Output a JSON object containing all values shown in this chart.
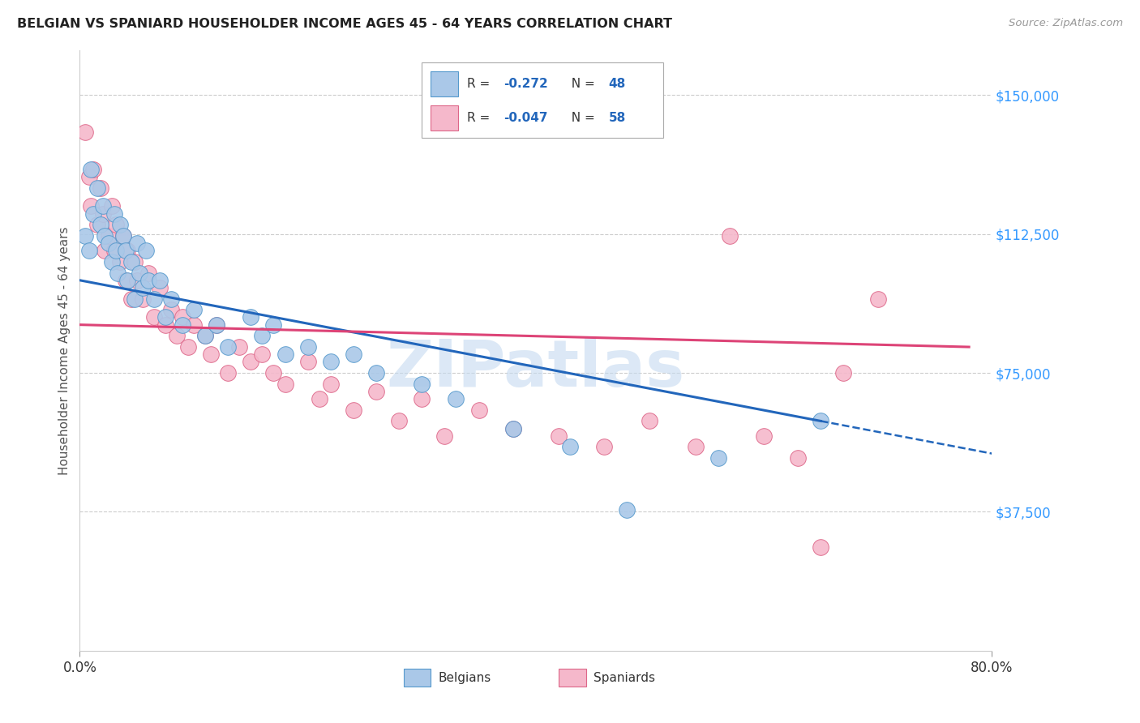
{
  "title": "BELGIAN VS SPANIARD HOUSEHOLDER INCOME AGES 45 - 64 YEARS CORRELATION CHART",
  "source": "Source: ZipAtlas.com",
  "ylabel": "Householder Income Ages 45 - 64 years",
  "xlim": [
    0.0,
    0.8
  ],
  "ylim": [
    0,
    162000
  ],
  "ytick_values": [
    37500,
    75000,
    112500,
    150000
  ],
  "ytick_labels": [
    "$37,500",
    "$75,000",
    "$112,500",
    "$150,000"
  ],
  "xtick_values": [
    0.0,
    0.8
  ],
  "xtick_labels": [
    "0.0%",
    "80.0%"
  ],
  "background_color": "#ffffff",
  "grid_color": "#cccccc",
  "belgian_fill": "#aac8e8",
  "belgian_edge": "#5599cc",
  "spaniard_fill": "#f5b8cb",
  "spaniard_edge": "#dd6688",
  "belgian_trend_color": "#2266bb",
  "spaniard_trend_color": "#dd4477",
  "watermark": "ZIPatlas",
  "watermark_color": "#c5daf0",
  "legend_R_color": "#2266bb",
  "legend_box_edge": "#aaaaaa",
  "ytick_color": "#3399ff",
  "belgian_scatter_x": [
    0.005,
    0.008,
    0.01,
    0.012,
    0.015,
    0.018,
    0.02,
    0.022,
    0.025,
    0.028,
    0.03,
    0.032,
    0.033,
    0.035,
    0.038,
    0.04,
    0.042,
    0.045,
    0.048,
    0.05,
    0.052,
    0.055,
    0.058,
    0.06,
    0.065,
    0.07,
    0.075,
    0.08,
    0.09,
    0.1,
    0.11,
    0.12,
    0.13,
    0.15,
    0.16,
    0.17,
    0.18,
    0.2,
    0.22,
    0.24,
    0.26,
    0.3,
    0.33,
    0.38,
    0.43,
    0.48,
    0.56,
    0.65
  ],
  "belgian_scatter_y": [
    112000,
    108000,
    130000,
    118000,
    125000,
    115000,
    120000,
    112000,
    110000,
    105000,
    118000,
    108000,
    102000,
    115000,
    112000,
    108000,
    100000,
    105000,
    95000,
    110000,
    102000,
    98000,
    108000,
    100000,
    95000,
    100000,
    90000,
    95000,
    88000,
    92000,
    85000,
    88000,
    82000,
    90000,
    85000,
    88000,
    80000,
    82000,
    78000,
    80000,
    75000,
    72000,
    68000,
    60000,
    55000,
    38000,
    52000,
    62000
  ],
  "spaniard_scatter_x": [
    0.005,
    0.008,
    0.01,
    0.012,
    0.015,
    0.018,
    0.02,
    0.022,
    0.025,
    0.028,
    0.03,
    0.032,
    0.035,
    0.038,
    0.04,
    0.042,
    0.045,
    0.048,
    0.05,
    0.055,
    0.06,
    0.065,
    0.07,
    0.075,
    0.08,
    0.085,
    0.09,
    0.095,
    0.1,
    0.11,
    0.115,
    0.12,
    0.13,
    0.14,
    0.15,
    0.16,
    0.17,
    0.18,
    0.2,
    0.21,
    0.22,
    0.24,
    0.26,
    0.28,
    0.3,
    0.32,
    0.35,
    0.38,
    0.42,
    0.46,
    0.5,
    0.54,
    0.57,
    0.6,
    0.63,
    0.65,
    0.67,
    0.7
  ],
  "spaniard_scatter_y": [
    140000,
    128000,
    120000,
    130000,
    115000,
    125000,
    118000,
    108000,
    112000,
    120000,
    108000,
    115000,
    105000,
    112000,
    100000,
    108000,
    95000,
    105000,
    100000,
    95000,
    102000,
    90000,
    98000,
    88000,
    92000,
    85000,
    90000,
    82000,
    88000,
    85000,
    80000,
    88000,
    75000,
    82000,
    78000,
    80000,
    75000,
    72000,
    78000,
    68000,
    72000,
    65000,
    70000,
    62000,
    68000,
    58000,
    65000,
    60000,
    58000,
    55000,
    62000,
    55000,
    112000,
    58000,
    52000,
    28000,
    75000,
    95000
  ]
}
